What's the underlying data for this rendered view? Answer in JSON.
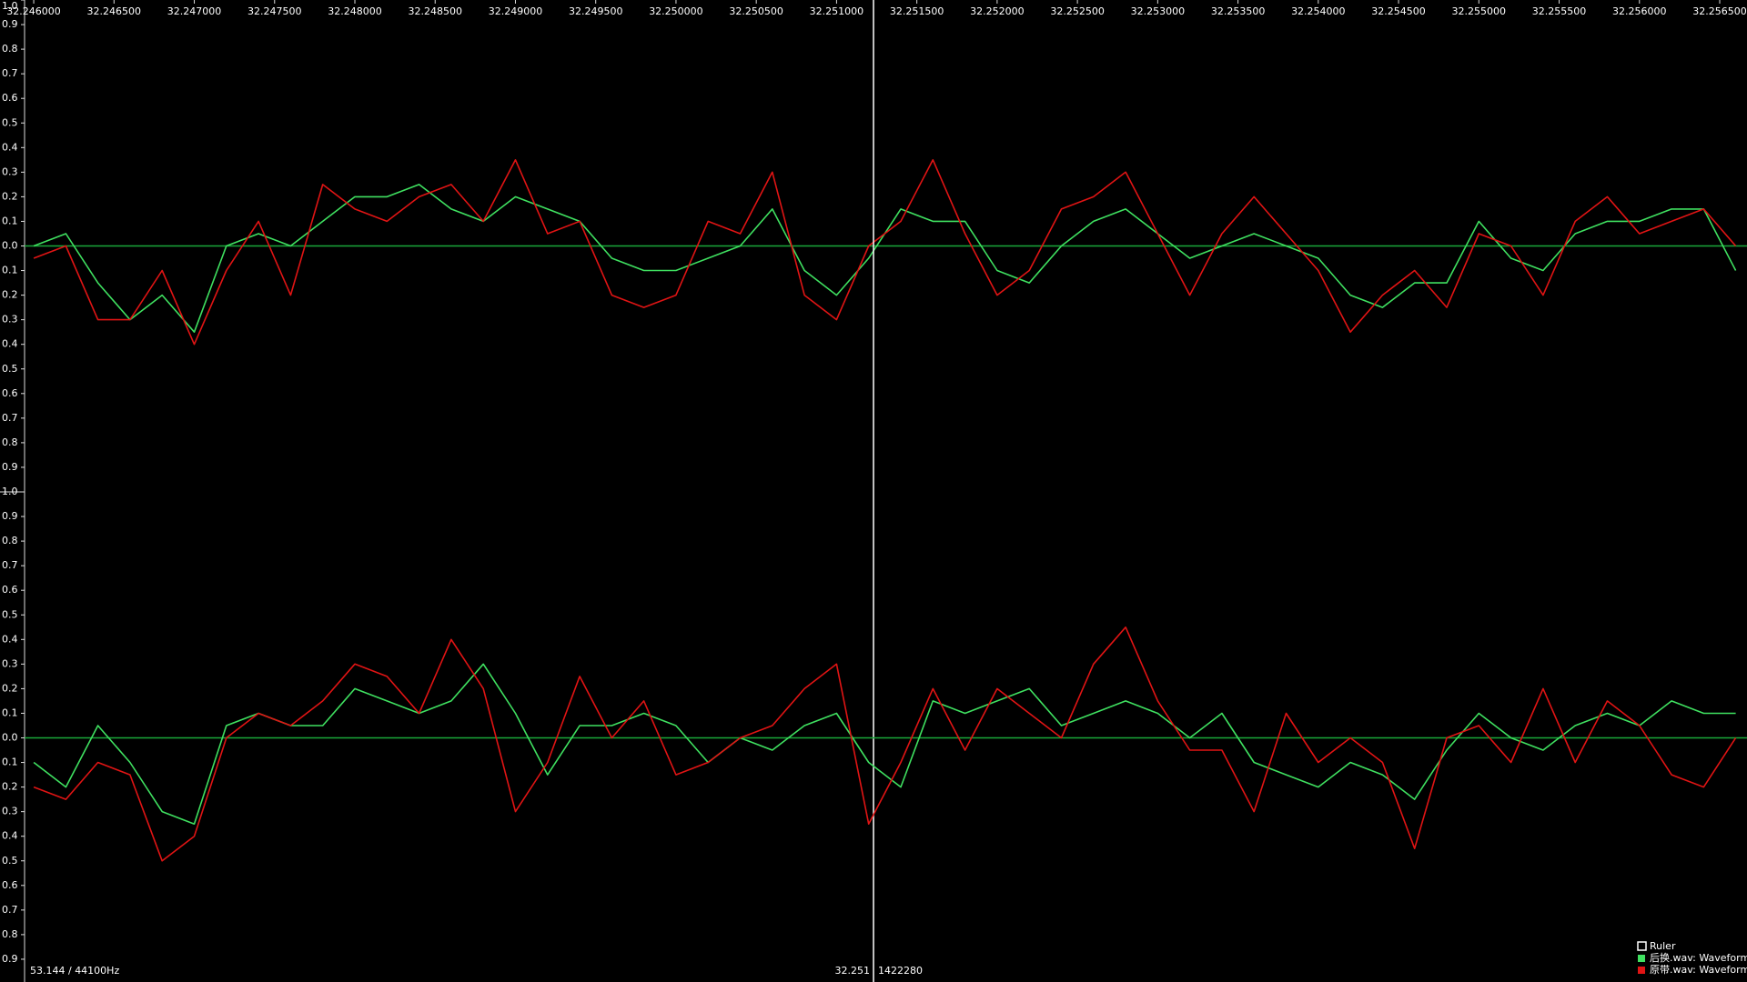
{
  "chart_data": [
    {
      "type": "line",
      "x": [
        32.246,
        32.2462,
        32.2464,
        32.2466,
        32.2468,
        32.247,
        32.2472,
        32.2474,
        32.2476,
        32.2478,
        32.248,
        32.2482,
        32.2484,
        32.2486,
        32.2488,
        32.249,
        32.2492,
        32.2494,
        32.2496,
        32.2498,
        32.25,
        32.2502,
        32.2504,
        32.2506,
        32.2508,
        32.251,
        32.2512,
        32.2514,
        32.2516,
        32.2518,
        32.252,
        32.2522,
        32.2524,
        32.2526,
        32.2528,
        32.253,
        32.2532,
        32.2534,
        32.2536,
        32.2538,
        32.254,
        32.2542,
        32.2544,
        32.2546,
        32.2548,
        32.255,
        32.2552,
        32.2554,
        32.2556,
        32.2558,
        32.256,
        32.2562,
        32.2564,
        32.2566
      ],
      "xlim": [
        32.24579,
        32.25667
      ],
      "xticks": [
        {
          "value": 32.246,
          "label": "32.246000"
        },
        {
          "value": 32.2465,
          "label": "32.246500"
        },
        {
          "value": 32.247,
          "label": "32.247000"
        },
        {
          "value": 32.2475,
          "label": "32.247500"
        },
        {
          "value": 32.248,
          "label": "32.248000"
        },
        {
          "value": 32.2485,
          "label": "32.248500"
        },
        {
          "value": 32.249,
          "label": "32.249000"
        },
        {
          "value": 32.2495,
          "label": "32.249500"
        },
        {
          "value": 32.25,
          "label": "32.250000"
        },
        {
          "value": 32.2505,
          "label": "32.250500"
        },
        {
          "value": 32.251,
          "label": "32.251000"
        },
        {
          "value": 32.2515,
          "label": "32.251500"
        },
        {
          "value": 32.252,
          "label": "32.252000"
        },
        {
          "value": 32.2525,
          "label": "32.252500"
        },
        {
          "value": 32.253,
          "label": "32.253000"
        },
        {
          "value": 32.2535,
          "label": "32.253500"
        },
        {
          "value": 32.254,
          "label": "32.254000"
        },
        {
          "value": 32.2545,
          "label": "32.254500"
        },
        {
          "value": 32.255,
          "label": "32.255000"
        },
        {
          "value": 32.2555,
          "label": "32.255500"
        },
        {
          "value": 32.256,
          "label": "32.256000"
        },
        {
          "value": 32.2565,
          "label": "32.256500"
        }
      ],
      "ylim": [
        -1,
        1
      ],
      "yticks": [
        {
          "value": 1,
          "label": "1.0"
        },
        0.9,
        0.8,
        0.7,
        0.6,
        0.5,
        0.4,
        0.3,
        0.2,
        0.1,
        {
          "value": 0,
          "label": "0.0"
        },
        {
          "value": -0.1,
          "label": "0.1"
        },
        {
          "value": -0.2,
          "label": "0.2"
        },
        {
          "value": -0.3,
          "label": "0.3"
        },
        {
          "value": -0.4,
          "label": "0.4"
        },
        {
          "value": -0.5,
          "label": "0.5"
        },
        {
          "value": -0.6,
          "label": "0.6"
        },
        {
          "value": -0.7,
          "label": "0.7"
        },
        {
          "value": -0.8,
          "label": "0.8"
        },
        {
          "value": -0.9,
          "label": "0.9"
        },
        {
          "value": -1,
          "label": "1.0"
        }
      ],
      "cursor": 32.25123,
      "series": [
        {
          "name": "后换.wav: Waveform",
          "color": "#3fe060",
          "values": [
            0.0,
            0.05,
            -0.15,
            -0.3,
            -0.2,
            -0.35,
            0.0,
            0.05,
            0.0,
            0.1,
            0.2,
            0.2,
            0.25,
            0.15,
            0.1,
            0.2,
            0.15,
            0.1,
            -0.05,
            -0.1,
            -0.1,
            -0.05,
            0.0,
            0.15,
            -0.1,
            -0.2,
            -0.05,
            0.15,
            0.1,
            0.1,
            -0.1,
            -0.15,
            0.0,
            0.1,
            0.15,
            0.05,
            -0.05,
            0.0,
            0.05,
            0.0,
            -0.05,
            -0.2,
            -0.25,
            -0.15,
            -0.15,
            0.1,
            -0.05,
            -0.1,
            0.05,
            0.1,
            0.1,
            0.15,
            0.15,
            -0.1
          ]
        },
        {
          "name": "原带.wav: Waveform",
          "color": "#e01414",
          "values": [
            -0.05,
            0.0,
            -0.3,
            -0.3,
            -0.1,
            -0.4,
            -0.1,
            0.1,
            -0.2,
            0.25,
            0.15,
            0.1,
            0.2,
            0.25,
            0.1,
            0.35,
            0.05,
            0.1,
            -0.2,
            -0.25,
            -0.2,
            0.1,
            0.05,
            0.3,
            -0.2,
            -0.3,
            0.0,
            0.1,
            0.35,
            0.05,
            -0.2,
            -0.1,
            0.15,
            0.2,
            0.3,
            0.05,
            -0.2,
            0.05,
            0.2,
            0.05,
            -0.1,
            -0.35,
            -0.2,
            -0.1,
            -0.25,
            0.05,
            0.0,
            -0.2,
            0.1,
            0.2,
            0.05,
            0.1,
            0.15,
            0.0
          ]
        }
      ]
    },
    {
      "type": "line",
      "x": [
        32.246,
        32.2462,
        32.2464,
        32.2466,
        32.2468,
        32.247,
        32.2472,
        32.2474,
        32.2476,
        32.2478,
        32.248,
        32.2482,
        32.2484,
        32.2486,
        32.2488,
        32.249,
        32.2492,
        32.2494,
        32.2496,
        32.2498,
        32.25,
        32.2502,
        32.2504,
        32.2506,
        32.2508,
        32.251,
        32.2512,
        32.2514,
        32.2516,
        32.2518,
        32.252,
        32.2522,
        32.2524,
        32.2526,
        32.2528,
        32.253,
        32.2532,
        32.2534,
        32.2536,
        32.2538,
        32.254,
        32.2542,
        32.2544,
        32.2546,
        32.2548,
        32.255,
        32.2552,
        32.2554,
        32.2556,
        32.2558,
        32.256,
        32.2562,
        32.2564,
        32.2566
      ],
      "xlim": [
        32.24579,
        32.25667
      ],
      "ylim": [
        -1,
        1
      ],
      "yticks": [
        0.9,
        0.8,
        0.7,
        0.6,
        0.5,
        0.4,
        0.3,
        0.2,
        0.1,
        {
          "value": 0,
          "label": "0.0"
        },
        {
          "value": -0.1,
          "label": "0.1"
        },
        {
          "value": -0.2,
          "label": "0.2"
        },
        {
          "value": -0.3,
          "label": "0.3"
        },
        {
          "value": -0.4,
          "label": "0.4"
        },
        {
          "value": -0.5,
          "label": "0.5"
        },
        {
          "value": -0.6,
          "label": "0.6"
        },
        {
          "value": -0.7,
          "label": "0.7"
        },
        {
          "value": -0.8,
          "label": "0.8"
        },
        {
          "value": -0.9,
          "label": "0.9"
        }
      ],
      "series": [
        {
          "name": "后换.wav: Waveform",
          "color": "#3fe060",
          "values": [
            -0.1,
            -0.2,
            0.05,
            -0.1,
            -0.3,
            -0.35,
            0.05,
            0.1,
            0.05,
            0.05,
            0.2,
            0.15,
            0.1,
            0.15,
            0.3,
            0.1,
            -0.15,
            0.05,
            0.05,
            0.1,
            0.05,
            -0.1,
            0.0,
            -0.05,
            0.05,
            0.1,
            -0.1,
            -0.2,
            0.15,
            0.1,
            0.15,
            0.2,
            0.05,
            0.1,
            0.15,
            0.1,
            0.0,
            0.1,
            -0.1,
            -0.15,
            -0.2,
            -0.1,
            -0.15,
            -0.25,
            -0.05,
            0.1,
            0.0,
            -0.05,
            0.05,
            0.1,
            0.05,
            0.15,
            0.1,
            0.1
          ]
        },
        {
          "name": "原带.wav: Waveform",
          "color": "#e01414",
          "values": [
            -0.2,
            -0.25,
            -0.1,
            -0.15,
            -0.5,
            -0.4,
            0.0,
            0.1,
            0.05,
            0.15,
            0.3,
            0.25,
            0.1,
            0.4,
            0.2,
            -0.3,
            -0.1,
            0.25,
            0.0,
            0.15,
            -0.15,
            -0.1,
            0.0,
            0.05,
            0.2,
            0.3,
            -0.35,
            -0.1,
            0.2,
            -0.05,
            0.2,
            0.1,
            0.0,
            0.3,
            0.45,
            0.15,
            -0.05,
            -0.05,
            -0.3,
            0.1,
            -0.1,
            0.0,
            -0.1,
            -0.45,
            0.0,
            0.05,
            -0.1,
            0.2,
            -0.1,
            0.15,
            0.05,
            -0.15,
            -0.2,
            0.0
          ]
        }
      ]
    }
  ],
  "status": {
    "format": "53.144 / 44100Hz",
    "cursor_time": "32.251",
    "cursor_sample": "1422280"
  },
  "legend": {
    "ruler": "Ruler"
  }
}
